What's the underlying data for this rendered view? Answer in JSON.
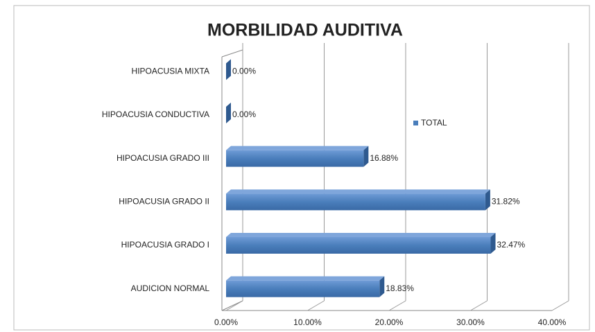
{
  "chart_data": {
    "type": "bar3d_horizontal",
    "title": "MORBILIDAD AUDITIVA",
    "categories": [
      "AUDICION NORMAL",
      "HIPOACUSIA GRADO I",
      "HIPOACUSIA GRADO II",
      "HIPOACUSIA GRADO III",
      "HIPOACUSIA CONDUCTIVA",
      "HIPOACUSIA MIXTA"
    ],
    "series": [
      {
        "name": "TOTAL",
        "color": "#4a7ebb",
        "values": [
          18.83,
          32.47,
          31.82,
          16.88,
          0,
          0
        ],
        "value_labels": [
          "18.83%",
          "32.47%",
          "31.82%",
          "16.88%",
          "0.00%",
          "0.00%"
        ]
      }
    ],
    "xlim": [
      0,
      40
    ],
    "xticks": [
      {
        "value": 0,
        "label": "0.00%"
      },
      {
        "value": 10,
        "label": "10.00%"
      },
      {
        "value": 20,
        "label": "20.00%"
      },
      {
        "value": 30,
        "label": "30.00%"
      },
      {
        "value": 40,
        "label": "40.00%"
      }
    ],
    "grid": true,
    "legend": "right"
  }
}
